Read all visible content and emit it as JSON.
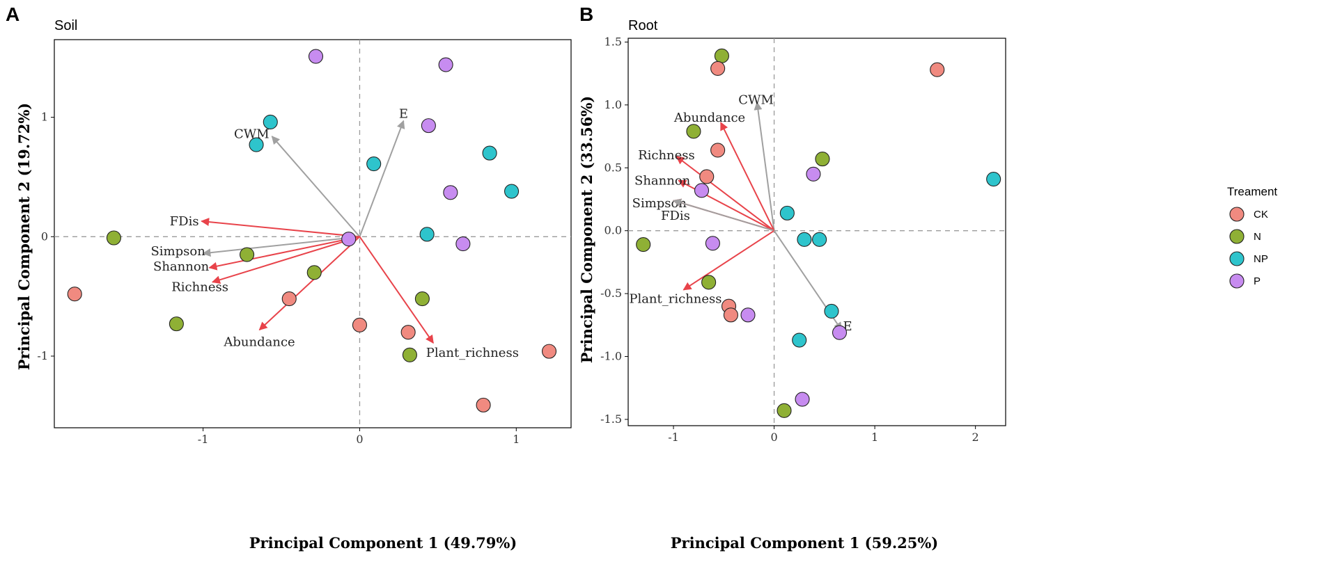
{
  "colors": {
    "CK": "#f08a80",
    "N": "#8fb035",
    "NP": "#2ec4cc",
    "P": "#c78cf0",
    "red_arrow": "#e8434a",
    "gray_arrow": "#a0a0a0"
  },
  "legend": {
    "title": "Treament",
    "items": [
      "CK",
      "N",
      "NP",
      "P"
    ]
  },
  "chart_data": [
    {
      "type": "scatter",
      "panel_letter": "A",
      "title": "Soil",
      "xlabel": "Principal Component 1 (49.79%)",
      "ylabel": "Principal Component 2 (19.72%)",
      "xlim": [
        -1.95,
        1.35
      ],
      "ylim": [
        -1.6,
        1.65
      ],
      "xticks": [
        -1,
        0,
        1
      ],
      "xtick_labels": [
        "-1",
        "0",
        "1"
      ],
      "yticks": [
        -1,
        0,
        1
      ],
      "ytick_labels": [
        "-1",
        "0",
        "1"
      ],
      "points": [
        {
          "group": "P",
          "x": -0.28,
          "y": 1.51
        },
        {
          "group": "P",
          "x": 0.55,
          "y": 1.44
        },
        {
          "group": "P",
          "x": 0.44,
          "y": 0.93
        },
        {
          "group": "P",
          "x": 0.58,
          "y": 0.37
        },
        {
          "group": "P",
          "x": 0.66,
          "y": -0.06
        },
        {
          "group": "P",
          "x": -0.07,
          "y": -0.02
        },
        {
          "group": "NP",
          "x": -0.57,
          "y": 0.96
        },
        {
          "group": "NP",
          "x": -0.66,
          "y": 0.77
        },
        {
          "group": "NP",
          "x": 0.09,
          "y": 0.61
        },
        {
          "group": "NP",
          "x": 0.83,
          "y": 0.7
        },
        {
          "group": "NP",
          "x": 0.97,
          "y": 0.38
        },
        {
          "group": "NP",
          "x": 0.43,
          "y": 0.02
        },
        {
          "group": "N",
          "x": -1.57,
          "y": -0.01
        },
        {
          "group": "N",
          "x": -0.72,
          "y": -0.15
        },
        {
          "group": "N",
          "x": -0.29,
          "y": -0.3
        },
        {
          "group": "N",
          "x": -1.17,
          "y": -0.73
        },
        {
          "group": "N",
          "x": 0.4,
          "y": -0.52
        },
        {
          "group": "N",
          "x": 0.32,
          "y": -0.99
        },
        {
          "group": "CK",
          "x": -1.82,
          "y": -0.48
        },
        {
          "group": "CK",
          "x": -0.45,
          "y": -0.52
        },
        {
          "group": "CK",
          "x": 0.0,
          "y": -0.74
        },
        {
          "group": "CK",
          "x": 0.31,
          "y": -0.8
        },
        {
          "group": "CK",
          "x": 1.21,
          "y": -0.96
        },
        {
          "group": "CK",
          "x": 0.79,
          "y": -1.41
        }
      ],
      "vectors": [
        {
          "name": "E",
          "x": 0.28,
          "y": 0.97,
          "color": "gray",
          "lx": 0.28,
          "ly": 1.03,
          "anchor": "middle"
        },
        {
          "name": "CWM",
          "x": -0.56,
          "y": 0.84,
          "color": "gray",
          "lx": -0.69,
          "ly": 0.86,
          "anchor": "middle"
        },
        {
          "name": "FDis",
          "x": -1.01,
          "y": 0.13,
          "color": "red",
          "lx": -1.12,
          "ly": 0.13,
          "anchor": "middle"
        },
        {
          "name": "Simpson",
          "x": -1.0,
          "y": -0.14,
          "color": "gray",
          "lx": -1.16,
          "ly": -0.12,
          "anchor": "middle"
        },
        {
          "name": "Shannon",
          "x": -0.96,
          "y": -0.26,
          "color": "red",
          "lx": -1.14,
          "ly": -0.25,
          "anchor": "middle"
        },
        {
          "name": "Richness",
          "x": -0.94,
          "y": -0.38,
          "color": "red",
          "lx": -1.02,
          "ly": -0.42,
          "anchor": "middle"
        },
        {
          "name": "Abundance",
          "x": -0.64,
          "y": -0.78,
          "color": "red",
          "lx": -0.64,
          "ly": -0.88,
          "anchor": "middle"
        },
        {
          "name": "Plant_richness",
          "x": 0.47,
          "y": -0.89,
          "color": "red",
          "lx": 0.72,
          "ly": -0.97,
          "anchor": "middle"
        }
      ]
    },
    {
      "type": "scatter",
      "panel_letter": "B",
      "title": "Root",
      "xlabel": "Principal Component 1 (59.25%)",
      "ylabel": "Principal Component 2 (33.56%)",
      "xlim": [
        -1.45,
        2.3
      ],
      "ylim": [
        -1.55,
        1.53
      ],
      "xticks": [
        -1,
        0,
        1,
        2
      ],
      "xtick_labels": [
        "-1",
        "0",
        "1",
        "2"
      ],
      "yticks": [
        -1.5,
        -1.0,
        -0.5,
        0.0,
        0.5,
        1.0,
        1.5
      ],
      "ytick_labels": [
        "-1.5",
        "-1.0",
        "-0.5",
        "0.0",
        "0.5",
        "1.0",
        "1.5"
      ],
      "points": [
        {
          "group": "N",
          "x": -0.52,
          "y": 1.39
        },
        {
          "group": "CK",
          "x": -0.56,
          "y": 1.29
        },
        {
          "group": "CK",
          "x": 1.62,
          "y": 1.28
        },
        {
          "group": "N",
          "x": -0.8,
          "y": 0.79
        },
        {
          "group": "CK",
          "x": -0.56,
          "y": 0.64
        },
        {
          "group": "N",
          "x": 0.48,
          "y": 0.57
        },
        {
          "group": "P",
          "x": 0.39,
          "y": 0.45
        },
        {
          "group": "CK",
          "x": -0.67,
          "y": 0.43
        },
        {
          "group": "P",
          "x": -0.72,
          "y": 0.32
        },
        {
          "group": "NP",
          "x": 2.18,
          "y": 0.41
        },
        {
          "group": "NP",
          "x": 0.13,
          "y": 0.14
        },
        {
          "group": "NP",
          "x": 0.3,
          "y": -0.07
        },
        {
          "group": "NP",
          "x": 0.45,
          "y": -0.07
        },
        {
          "group": "P",
          "x": -0.61,
          "y": -0.1
        },
        {
          "group": "N",
          "x": -1.3,
          "y": -0.11
        },
        {
          "group": "N",
          "x": -0.65,
          "y": -0.41
        },
        {
          "group": "CK",
          "x": -0.45,
          "y": -0.6
        },
        {
          "group": "CK",
          "x": -0.43,
          "y": -0.67
        },
        {
          "group": "P",
          "x": -0.26,
          "y": -0.67
        },
        {
          "group": "NP",
          "x": 0.57,
          "y": -0.64
        },
        {
          "group": "P",
          "x": 0.65,
          "y": -0.81
        },
        {
          "group": "NP",
          "x": 0.25,
          "y": -0.87
        },
        {
          "group": "N",
          "x": 0.1,
          "y": -1.43
        },
        {
          "group": "P",
          "x": 0.28,
          "y": -1.34
        }
      ],
      "vectors": [
        {
          "name": "CWM",
          "x": -0.17,
          "y": 1.02,
          "color": "gray",
          "lx": -0.18,
          "ly": 1.04,
          "anchor": "middle"
        },
        {
          "name": "Abundance",
          "x": -0.53,
          "y": 0.86,
          "color": "red",
          "lx": -0.64,
          "ly": 0.9,
          "anchor": "middle"
        },
        {
          "name": "Richness",
          "x": -0.97,
          "y": 0.59,
          "color": "red",
          "lx": -1.07,
          "ly": 0.6,
          "anchor": "middle"
        },
        {
          "name": "Shannon",
          "x": -0.95,
          "y": 0.4,
          "color": "red",
          "lx": -1.11,
          "ly": 0.4,
          "anchor": "middle"
        },
        {
          "name": "Simpson",
          "x": -1.0,
          "y": 0.24,
          "color": "red",
          "lx": -1.14,
          "ly": 0.22,
          "anchor": "middle"
        },
        {
          "name": "FDis",
          "x": -1.0,
          "y": 0.24,
          "color": "gray",
          "lx": -0.98,
          "ly": 0.12,
          "anchor": "middle"
        },
        {
          "name": "Plant_richness",
          "x": -0.9,
          "y": -0.47,
          "color": "red",
          "lx": -0.98,
          "ly": -0.54,
          "anchor": "middle"
        },
        {
          "name": "E",
          "x": 0.67,
          "y": -0.79,
          "color": "gray",
          "lx": 0.73,
          "ly": -0.76,
          "anchor": "middle"
        }
      ]
    }
  ]
}
